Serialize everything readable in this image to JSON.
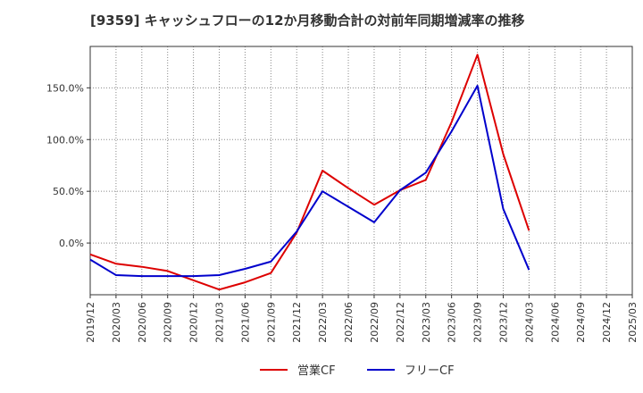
{
  "chart_data": {
    "type": "line",
    "title": "[9359]  キャッシュフローの12か月移動合計の対前年同期増減率の推移",
    "xlabel": "",
    "ylabel": "",
    "x": [
      "2019/12",
      "2020/03",
      "2020/06",
      "2020/09",
      "2020/12",
      "2021/03",
      "2021/06",
      "2021/09",
      "2021/12",
      "2022/03",
      "2022/06",
      "2022/09",
      "2022/12",
      "2023/03",
      "2023/06",
      "2023/09",
      "2023/12",
      "2024/03",
      "2024/06",
      "2024/09",
      "2024/12",
      "2025/03"
    ],
    "ylim": [
      -50,
      190
    ],
    "yticks": [
      0,
      50,
      100,
      150
    ],
    "ytick_labels": [
      "0.0%",
      "50.0%",
      "100.0%",
      "150.0%"
    ],
    "grid": true,
    "legend_position": "bottom-center",
    "series": [
      {
        "name": "営業CF",
        "color": "#dd0000",
        "values": [
          -11,
          -20,
          -23,
          -27,
          -36,
          -45,
          -38,
          -29,
          10,
          70,
          53,
          37,
          51,
          61,
          117,
          182,
          86,
          12,
          null,
          null,
          null,
          null
        ]
      },
      {
        "name": "フリーCF",
        "color": "#0000cc",
        "values": [
          -16,
          -31,
          -32,
          -32,
          -32,
          -31,
          -25,
          -18,
          11,
          50,
          35,
          20,
          51,
          68,
          108,
          152,
          33,
          -26,
          null,
          null,
          null,
          null
        ]
      }
    ]
  }
}
